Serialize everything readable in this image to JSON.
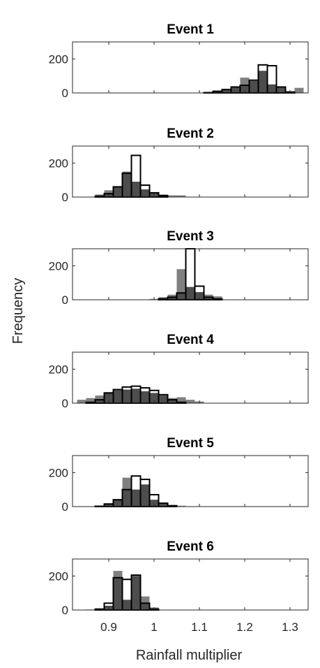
{
  "figure": {
    "ylabel": "Frequency",
    "xlabel": "Rainfall multiplier",
    "x_tick_labels": [
      "0.9",
      "1",
      "1.1",
      "1.2",
      "1.3"
    ],
    "y_tick_labels": [
      "0",
      "200"
    ]
  },
  "colors": {
    "gray_bars": "#808080",
    "dark_overlap": "#4d4d4d",
    "outline_bars": "#000000",
    "axes": "#262626"
  },
  "chart_data": [
    {
      "type": "bar",
      "title": "Event 1",
      "xlim": [
        0.82,
        1.34
      ],
      "ylim": [
        0,
        300
      ],
      "bin_width": 0.02,
      "series": [
        {
          "x": [
            1.12,
            1.14,
            1.16,
            1.18,
            1.2,
            1.22,
            1.24,
            1.26,
            1.28,
            1.3,
            1.32
          ],
          "values": [
            5,
            12,
            22,
            38,
            90,
            70,
            130,
            50,
            35,
            10,
            30
          ]
        },
        {
          "x": [
            1.12,
            1.14,
            1.16,
            1.18,
            1.2,
            1.22,
            1.24,
            1.26,
            1.28,
            1.3,
            1.32
          ],
          "values": [
            2,
            10,
            20,
            35,
            45,
            75,
            165,
            160,
            35,
            5,
            0
          ]
        }
      ]
    },
    {
      "type": "bar",
      "title": "Event 2",
      "xlim": [
        0.82,
        1.34
      ],
      "ylim": [
        0,
        300
      ],
      "bin_width": 0.02,
      "series": [
        {
          "x": [
            0.88,
            0.9,
            0.92,
            0.94,
            0.96,
            0.98,
            1.0,
            1.02,
            1.04,
            1.06
          ],
          "values": [
            15,
            40,
            60,
            150,
            90,
            45,
            25,
            15,
            10,
            10
          ]
        },
        {
          "x": [
            0.88,
            0.9,
            0.92,
            0.94,
            0.96,
            0.98,
            1.0,
            1.02,
            1.04,
            1.06
          ],
          "values": [
            5,
            20,
            60,
            140,
            245,
            70,
            25,
            8,
            0,
            0
          ]
        }
      ]
    },
    {
      "type": "bar",
      "title": "Event 3",
      "xlim": [
        0.82,
        1.34
      ],
      "ylim": [
        0,
        300
      ],
      "bin_width": 0.02,
      "series": [
        {
          "x": [
            1.0,
            1.02,
            1.04,
            1.06,
            1.08,
            1.1,
            1.12,
            1.14
          ],
          "values": [
            5,
            15,
            30,
            180,
            75,
            45,
            30,
            20
          ]
        },
        {
          "x": [
            1.0,
            1.02,
            1.04,
            1.06,
            1.08,
            1.1,
            1.12,
            1.14
          ],
          "values": [
            0,
            5,
            15,
            40,
            300,
            80,
            15,
            5
          ]
        }
      ]
    },
    {
      "type": "bar",
      "title": "Event 4",
      "xlim": [
        0.82,
        1.34
      ],
      "ylim": [
        0,
        300
      ],
      "bin_width": 0.02,
      "series": [
        {
          "x": [
            0.84,
            0.86,
            0.88,
            0.9,
            0.92,
            0.94,
            0.96,
            0.98,
            1.0,
            1.02,
            1.04,
            1.06,
            1.08,
            1.1
          ],
          "values": [
            20,
            30,
            45,
            65,
            75,
            80,
            85,
            70,
            60,
            45,
            30,
            35,
            20,
            10
          ]
        },
        {
          "x": [
            0.84,
            0.86,
            0.88,
            0.9,
            0.92,
            0.94,
            0.96,
            0.98,
            1.0,
            1.02,
            1.04,
            1.06,
            1.08,
            1.1
          ],
          "values": [
            0,
            5,
            20,
            60,
            80,
            95,
            100,
            90,
            75,
            50,
            20,
            5,
            0,
            0
          ]
        }
      ]
    },
    {
      "type": "bar",
      "title": "Event 5",
      "xlim": [
        0.82,
        1.34
      ],
      "ylim": [
        0,
        300
      ],
      "bin_width": 0.02,
      "series": [
        {
          "x": [
            0.88,
            0.9,
            0.92,
            0.94,
            0.96,
            0.98,
            1.0,
            1.02,
            1.04,
            1.06
          ],
          "values": [
            5,
            20,
            45,
            170,
            100,
            130,
            40,
            20,
            10,
            5
          ]
        },
        {
          "x": [
            0.88,
            0.9,
            0.92,
            0.94,
            0.96,
            0.98,
            1.0,
            1.02,
            1.04,
            1.06
          ],
          "values": [
            2,
            15,
            40,
            100,
            180,
            160,
            70,
            20,
            5,
            0
          ]
        }
      ]
    },
    {
      "type": "bar",
      "title": "Event 6",
      "xlim": [
        0.82,
        1.34
      ],
      "ylim": [
        0,
        300
      ],
      "bin_width": 0.02,
      "series": [
        {
          "x": [
            0.86,
            0.88,
            0.9,
            0.92,
            0.94,
            0.96,
            0.98,
            1.0
          ],
          "values": [
            3,
            10,
            25,
            230,
            60,
            200,
            80,
            15
          ]
        },
        {
          "x": [
            0.86,
            0.88,
            0.9,
            0.92,
            0.94,
            0.96,
            0.98,
            1.0
          ],
          "values": [
            0,
            5,
            40,
            190,
            180,
            205,
            40,
            5
          ]
        }
      ]
    }
  ]
}
